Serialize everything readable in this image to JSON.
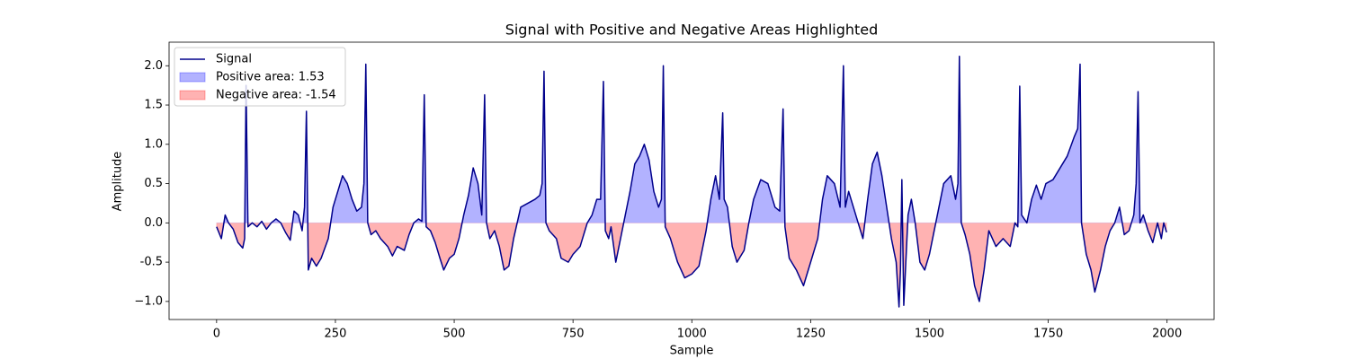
{
  "chart_data": {
    "type": "line",
    "title": "Signal with Positive and Negative Areas Highlighted",
    "x_label": "Sample",
    "y_label": "Amplitude",
    "x": [
      0,
      10,
      18,
      25,
      35,
      45,
      55,
      59,
      62,
      66,
      75,
      85,
      95,
      105,
      115,
      125,
      135,
      145,
      155,
      163,
      172,
      180,
      185,
      189,
      193,
      200,
      210,
      220,
      235,
      245,
      255,
      265,
      275,
      285,
      295,
      305,
      310,
      314,
      318,
      325,
      335,
      345,
      360,
      370,
      380,
      395,
      405,
      415,
      425,
      432,
      437,
      441,
      450,
      460,
      470,
      478,
      490,
      500,
      510,
      520,
      530,
      540,
      550,
      558,
      564,
      568,
      575,
      585,
      595,
      605,
      615,
      625,
      640,
      655,
      670,
      680,
      685,
      689,
      693,
      700,
      715,
      725,
      740,
      750,
      765,
      780,
      790,
      800,
      808,
      814,
      818,
      825,
      830,
      840,
      850,
      860,
      870,
      880,
      890,
      900,
      910,
      920,
      930,
      936,
      940,
      944,
      955,
      970,
      985,
      1000,
      1015,
      1030,
      1040,
      1050,
      1058,
      1065,
      1068,
      1075,
      1085,
      1095,
      1110,
      1120,
      1130,
      1145,
      1160,
      1175,
      1185,
      1192,
      1196,
      1205,
      1220,
      1235,
      1250,
      1265,
      1275,
      1285,
      1300,
      1312,
      1319,
      1323,
      1330,
      1340,
      1350,
      1360,
      1370,
      1380,
      1390,
      1400,
      1410,
      1420,
      1430,
      1436,
      1439,
      1442,
      1446,
      1455,
      1462,
      1470,
      1480,
      1490,
      1500,
      1510,
      1520,
      1530,
      1545,
      1555,
      1560,
      1563,
      1567,
      1575,
      1585,
      1595,
      1605,
      1615,
      1625,
      1640,
      1655,
      1670,
      1680,
      1686,
      1690,
      1694,
      1705,
      1715,
      1725,
      1735,
      1745,
      1760,
      1775,
      1790,
      1805,
      1812,
      1817,
      1820,
      1830,
      1840,
      1848,
      1860,
      1870,
      1880,
      1890,
      1900,
      1910,
      1920,
      1930,
      1935,
      1939,
      1943,
      1950,
      1960,
      1970,
      1980,
      1988,
      1993,
      1999
    ],
    "series": [
      {
        "name": "Signal",
        "color": "#00008b",
        "values": [
          -0.05,
          -0.2,
          0.1,
          0.0,
          -0.08,
          -0.25,
          -0.32,
          -0.2,
          1.75,
          -0.05,
          0.0,
          -0.05,
          0.02,
          -0.08,
          0.0,
          0.05,
          0.0,
          -0.12,
          -0.22,
          0.15,
          0.1,
          -0.1,
          0.2,
          1.42,
          -0.6,
          -0.45,
          -0.55,
          -0.45,
          -0.2,
          0.2,
          0.4,
          0.6,
          0.5,
          0.3,
          0.15,
          0.2,
          0.5,
          2.02,
          0.0,
          -0.15,
          -0.1,
          -0.2,
          -0.3,
          -0.42,
          -0.3,
          -0.35,
          -0.15,
          0.0,
          0.05,
          0.02,
          1.63,
          -0.05,
          -0.1,
          -0.25,
          -0.45,
          -0.6,
          -0.45,
          -0.4,
          -0.2,
          0.1,
          0.35,
          0.7,
          0.5,
          0.1,
          1.63,
          0.0,
          -0.2,
          -0.1,
          -0.3,
          -0.6,
          -0.55,
          -0.2,
          0.2,
          0.25,
          0.3,
          0.35,
          0.5,
          1.93,
          0.0,
          -0.1,
          -0.2,
          -0.45,
          -0.5,
          -0.4,
          -0.3,
          0.0,
          0.1,
          0.3,
          0.3,
          1.8,
          -0.1,
          -0.2,
          -0.05,
          -0.5,
          -0.2,
          0.1,
          0.4,
          0.75,
          0.85,
          1.0,
          0.8,
          0.4,
          0.2,
          0.3,
          2.0,
          -0.05,
          -0.2,
          -0.5,
          -0.7,
          -0.65,
          -0.55,
          -0.1,
          0.3,
          0.6,
          0.3,
          1.4,
          0.3,
          0.2,
          -0.3,
          -0.5,
          -0.35,
          0.0,
          0.3,
          0.55,
          0.5,
          0.2,
          0.15,
          1.45,
          -0.05,
          -0.45,
          -0.6,
          -0.8,
          -0.5,
          -0.2,
          0.3,
          0.6,
          0.5,
          0.2,
          2.0,
          0.2,
          0.4,
          0.2,
          0.0,
          -0.2,
          0.3,
          0.75,
          0.9,
          0.6,
          0.2,
          -0.2,
          -0.5,
          -1.07,
          -0.6,
          0.55,
          -1.05,
          0.1,
          0.3,
          0.0,
          -0.5,
          -0.6,
          -0.4,
          -0.1,
          0.2,
          0.5,
          0.6,
          0.3,
          0.5,
          2.12,
          0.0,
          -0.15,
          -0.4,
          -0.8,
          -1.0,
          -0.6,
          -0.1,
          -0.3,
          -0.2,
          -0.3,
          0.0,
          -0.05,
          1.74,
          0.1,
          0.0,
          0.3,
          0.48,
          0.3,
          0.5,
          0.55,
          0.7,
          0.85,
          1.1,
          1.2,
          2.02,
          0.0,
          -0.4,
          -0.6,
          -0.88,
          -0.6,
          -0.3,
          -0.1,
          0.0,
          0.2,
          -0.15,
          -0.1,
          0.1,
          0.5,
          1.67,
          0.0,
          0.1,
          -0.1,
          -0.25,
          0.0,
          -0.2,
          0.0,
          -0.12
        ]
      }
    ],
    "fills": [
      {
        "name": "Positive area: 1.53",
        "color": "#0000ff",
        "alpha": 0.3,
        "side": "above"
      },
      {
        "name": "Negative area: -1.54",
        "color": "#ff0000",
        "alpha": 0.3,
        "side": "below"
      }
    ],
    "xlim": [
      -100,
      2099
    ],
    "ylim": [
      -1.23,
      2.3
    ],
    "xticks": [
      0,
      250,
      500,
      750,
      1000,
      1250,
      1500,
      1750,
      2000
    ],
    "yticks": [
      {
        "value": -1,
        "label": "−1.0"
      },
      -0.5,
      {
        "value": 0,
        "label": "0.0"
      },
      0.5,
      {
        "value": 1,
        "label": "1.0"
      },
      1.5,
      {
        "value": 2,
        "label": "2.0"
      }
    ],
    "legend": "upper left"
  }
}
